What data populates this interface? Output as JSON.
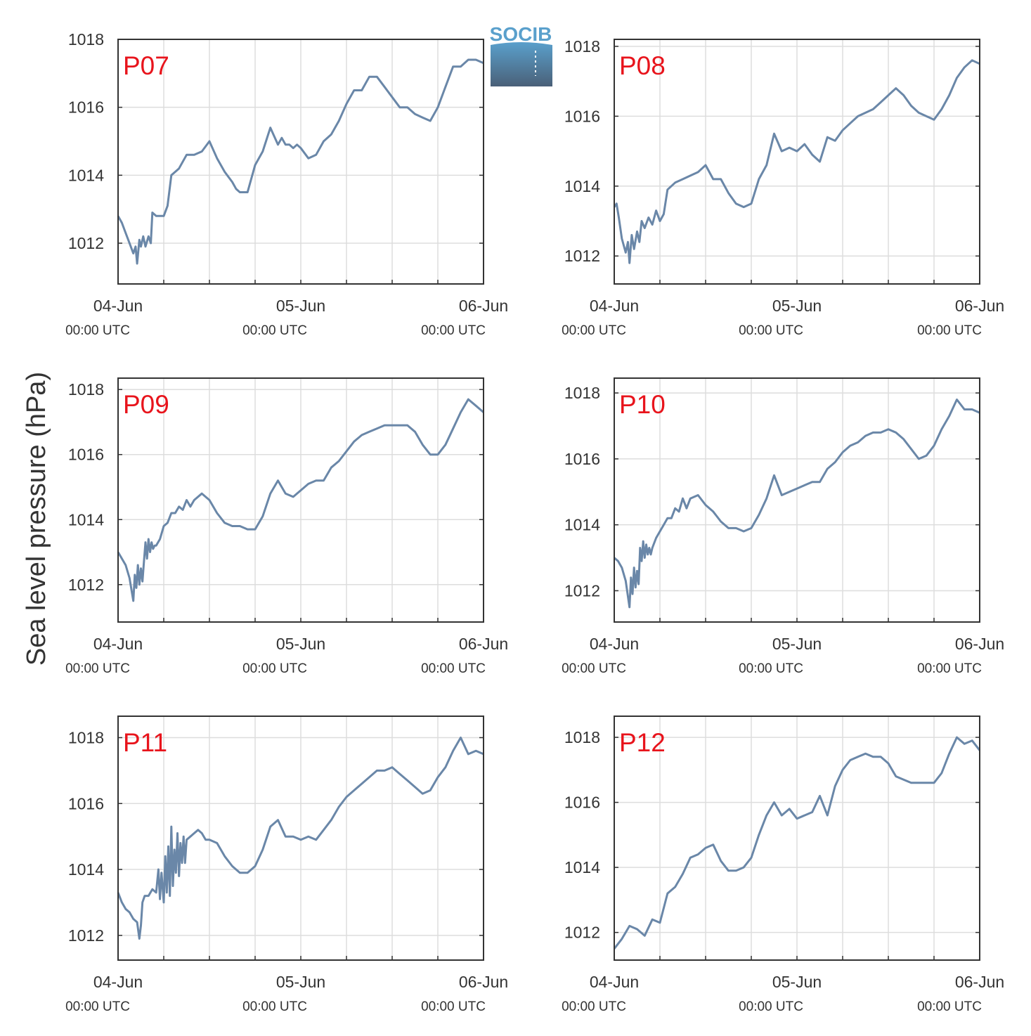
{
  "figure": {
    "ylabel": "Sea level pressure (hPa)",
    "logo_text": "SOCIB"
  },
  "colors": {
    "line": "#6a87a8",
    "label": "#e8141c",
    "grid": "#dddddd",
    "axis": "#333333",
    "logo_top": "#5aa0cc",
    "logo_bottom": "#4a6078"
  },
  "chart_data": [
    {
      "type": "line",
      "name": "P07",
      "panel_label": "P07",
      "ylim": [
        1010.8,
        1018.0
      ],
      "yticks": [
        1012,
        1014,
        1016,
        1018
      ],
      "xlim": [
        0,
        48
      ],
      "xticks": [
        0,
        24,
        48
      ],
      "xtick_labels": [
        "04-Jun",
        "05-Jun",
        "06-Jun"
      ],
      "xtick_sublabel": "00:00 UTC",
      "series": [
        {
          "x": [
            0,
            0.5,
            1,
            1.5,
            2,
            2.3,
            2.5,
            2.8,
            3,
            3.3,
            3.6,
            4,
            4.3,
            4.5,
            5,
            5.5,
            6,
            6.5,
            7,
            7.5,
            8,
            9,
            10,
            11,
            12,
            13,
            14,
            15,
            15.5,
            16,
            17,
            18,
            19,
            20,
            21,
            21.5,
            22,
            22.5,
            23,
            23.5,
            24,
            25,
            26,
            27,
            28,
            29,
            30,
            31,
            32,
            33,
            34,
            35,
            36,
            37,
            38,
            39,
            40,
            41,
            42,
            43,
            44,
            45,
            46,
            47,
            48
          ],
          "y": [
            1012.8,
            1012.6,
            1012.3,
            1012.0,
            1011.7,
            1011.9,
            1011.4,
            1012.1,
            1011.9,
            1012.2,
            1011.9,
            1012.2,
            1012.0,
            1012.9,
            1012.8,
            1012.8,
            1012.8,
            1013.1,
            1014.0,
            1014.1,
            1014.2,
            1014.6,
            1014.6,
            1014.7,
            1015.0,
            1014.5,
            1014.1,
            1013.8,
            1013.6,
            1013.5,
            1013.5,
            1014.3,
            1014.7,
            1015.4,
            1014.9,
            1015.1,
            1014.9,
            1014.9,
            1014.8,
            1014.9,
            1014.8,
            1014.5,
            1014.6,
            1015.0,
            1015.2,
            1015.6,
            1016.1,
            1016.5,
            1016.5,
            1016.9,
            1016.9,
            1016.6,
            1016.3,
            1016.0,
            1016.0,
            1015.8,
            1015.7,
            1015.6,
            1016.0,
            1016.6,
            1017.2,
            1017.2,
            1017.4,
            1017.4,
            1017.3
          ]
        }
      ]
    },
    {
      "type": "line",
      "name": "P08",
      "panel_label": "P08",
      "ylim": [
        1011.2,
        1018.2
      ],
      "yticks": [
        1012,
        1014,
        1016,
        1018
      ],
      "xlim": [
        0,
        48
      ],
      "xticks": [
        0,
        24,
        48
      ],
      "xtick_labels": [
        "04-Jun",
        "05-Jun",
        "06-Jun"
      ],
      "xtick_sublabel": "00:00 UTC",
      "series": [
        {
          "x": [
            0,
            0.3,
            0.6,
            1,
            1.5,
            1.8,
            2,
            2.3,
            2.6,
            3,
            3.3,
            3.6,
            4,
            4.5,
            5,
            5.5,
            6,
            6.5,
            7,
            8,
            9,
            10,
            11,
            12,
            13,
            14,
            15,
            16,
            17,
            18,
            19,
            20,
            21,
            22,
            23,
            24,
            25,
            26,
            27,
            28,
            29,
            30,
            31,
            32,
            33,
            34,
            35,
            36,
            37,
            38,
            39,
            40,
            41,
            42,
            43,
            44,
            45,
            46,
            47,
            48
          ],
          "y": [
            1013.4,
            1013.5,
            1013.1,
            1012.5,
            1012.1,
            1012.4,
            1011.8,
            1012.6,
            1012.2,
            1012.7,
            1012.4,
            1013.0,
            1012.8,
            1013.1,
            1012.9,
            1013.3,
            1013.0,
            1013.2,
            1013.9,
            1014.1,
            1014.2,
            1014.3,
            1014.4,
            1014.6,
            1014.2,
            1014.2,
            1013.8,
            1013.5,
            1013.4,
            1013.5,
            1014.2,
            1014.6,
            1015.5,
            1015.0,
            1015.1,
            1015.0,
            1015.2,
            1014.9,
            1014.7,
            1015.4,
            1015.3,
            1015.6,
            1015.8,
            1016.0,
            1016.1,
            1016.2,
            1016.4,
            1016.6,
            1016.8,
            1016.6,
            1016.3,
            1016.1,
            1016.0,
            1015.9,
            1016.2,
            1016.6,
            1017.1,
            1017.4,
            1017.6,
            1017.5
          ]
        }
      ]
    },
    {
      "type": "line",
      "name": "P09",
      "panel_label": "P09",
      "ylim": [
        1010.85,
        1018.35
      ],
      "yticks": [
        1012,
        1014,
        1016,
        1018
      ],
      "xlim": [
        0,
        48
      ],
      "xticks": [
        0,
        24,
        48
      ],
      "xtick_labels": [
        "04-Jun",
        "05-Jun",
        "06-Jun"
      ],
      "xtick_sublabel": "00:00 UTC",
      "series": [
        {
          "x": [
            0,
            0.5,
            1,
            1.5,
            2,
            2.2,
            2.4,
            2.6,
            2.8,
            3,
            3.2,
            3.4,
            3.6,
            3.8,
            4,
            4.2,
            4.4,
            4.6,
            4.8,
            5,
            5.5,
            6,
            6.5,
            7,
            7.5,
            8,
            8.5,
            9,
            9.5,
            10,
            11,
            12,
            13,
            14,
            15,
            16,
            17,
            18,
            19,
            20,
            21,
            22,
            23,
            24,
            25,
            26,
            27,
            28,
            29,
            30,
            31,
            32,
            33,
            34,
            35,
            36,
            37,
            38,
            39,
            40,
            41,
            42,
            43,
            44,
            45,
            46,
            47,
            48
          ],
          "y": [
            1013.0,
            1012.8,
            1012.6,
            1012.2,
            1011.5,
            1012.3,
            1011.9,
            1012.6,
            1012.0,
            1012.5,
            1012.1,
            1012.7,
            1013.3,
            1012.8,
            1013.4,
            1013.0,
            1013.3,
            1013.1,
            1013.2,
            1013.2,
            1013.4,
            1013.8,
            1013.9,
            1014.2,
            1014.2,
            1014.4,
            1014.3,
            1014.6,
            1014.4,
            1014.6,
            1014.8,
            1014.6,
            1014.2,
            1013.9,
            1013.8,
            1013.8,
            1013.7,
            1013.7,
            1014.1,
            1014.8,
            1015.2,
            1014.8,
            1014.7,
            1014.9,
            1015.1,
            1015.2,
            1015.2,
            1015.6,
            1015.8,
            1016.1,
            1016.4,
            1016.6,
            1016.7,
            1016.8,
            1016.9,
            1016.9,
            1016.9,
            1016.9,
            1016.7,
            1016.3,
            1016.0,
            1016.0,
            1016.3,
            1016.8,
            1017.3,
            1017.7,
            1017.5,
            1017.3
          ]
        }
      ]
    },
    {
      "type": "line",
      "name": "P10",
      "panel_label": "P10",
      "ylim": [
        1011.05,
        1018.45
      ],
      "yticks": [
        1012,
        1014,
        1016,
        1018
      ],
      "xlim": [
        0,
        48
      ],
      "xticks": [
        0,
        24,
        48
      ],
      "xtick_labels": [
        "04-Jun",
        "05-Jun",
        "06-Jun"
      ],
      "xtick_sublabel": "00:00 UTC",
      "series": [
        {
          "x": [
            0,
            0.5,
            1,
            1.5,
            2,
            2.2,
            2.4,
            2.6,
            2.8,
            3,
            3.2,
            3.4,
            3.6,
            3.8,
            4,
            4.2,
            4.4,
            4.6,
            4.8,
            5,
            5.5,
            6,
            6.5,
            7,
            7.5,
            8,
            8.5,
            9,
            9.5,
            10,
            11,
            12,
            13,
            14,
            15,
            16,
            17,
            18,
            19,
            20,
            21,
            22,
            23,
            24,
            25,
            26,
            27,
            28,
            29,
            30,
            31,
            32,
            33,
            34,
            35,
            36,
            37,
            38,
            39,
            40,
            41,
            42,
            43,
            44,
            45,
            46,
            47,
            48
          ],
          "y": [
            1013.0,
            1012.9,
            1012.7,
            1012.3,
            1011.5,
            1012.4,
            1011.9,
            1012.7,
            1012.1,
            1012.6,
            1012.2,
            1013.3,
            1012.9,
            1013.5,
            1013.0,
            1013.4,
            1013.1,
            1013.3,
            1013.1,
            1013.3,
            1013.6,
            1013.8,
            1014.0,
            1014.2,
            1014.2,
            1014.5,
            1014.4,
            1014.8,
            1014.5,
            1014.8,
            1014.9,
            1014.6,
            1014.4,
            1014.1,
            1013.9,
            1013.9,
            1013.8,
            1013.9,
            1014.3,
            1014.8,
            1015.5,
            1014.9,
            1015.0,
            1015.1,
            1015.2,
            1015.3,
            1015.3,
            1015.7,
            1015.9,
            1016.2,
            1016.4,
            1016.5,
            1016.7,
            1016.8,
            1016.8,
            1016.9,
            1016.8,
            1016.6,
            1016.3,
            1016.0,
            1016.1,
            1016.4,
            1016.9,
            1017.3,
            1017.8,
            1017.5,
            1017.5,
            1017.4
          ]
        }
      ]
    },
    {
      "type": "line",
      "name": "P11",
      "panel_label": "P11",
      "ylim": [
        1011.25,
        1018.65
      ],
      "yticks": [
        1012,
        1014,
        1016,
        1018
      ],
      "xlim": [
        0,
        48
      ],
      "xticks": [
        0,
        24,
        48
      ],
      "xtick_labels": [
        "04-Jun",
        "05-Jun",
        "06-Jun"
      ],
      "xtick_sublabel": "00:00 UTC",
      "series": [
        {
          "x": [
            0,
            0.5,
            1,
            1.5,
            2,
            2.5,
            2.8,
            3,
            3.2,
            3.5,
            4,
            4.5,
            5,
            5.3,
            5.5,
            5.7,
            6,
            6.2,
            6.4,
            6.6,
            6.8,
            7,
            7.2,
            7.4,
            7.6,
            7.8,
            8,
            8.2,
            8.4,
            8.6,
            8.8,
            9,
            9.5,
            10,
            10.5,
            11,
            11.5,
            12,
            13,
            14,
            15,
            16,
            17,
            18,
            19,
            20,
            21,
            22,
            23,
            24,
            25,
            26,
            27,
            28,
            29,
            30,
            31,
            32,
            33,
            34,
            35,
            36,
            37,
            38,
            39,
            40,
            41,
            42,
            43,
            44,
            45,
            46,
            47,
            48
          ],
          "y": [
            1013.3,
            1013.0,
            1012.8,
            1012.7,
            1012.5,
            1012.4,
            1011.9,
            1012.3,
            1013.0,
            1013.2,
            1013.2,
            1013.4,
            1013.3,
            1014.0,
            1013.1,
            1013.9,
            1013.0,
            1014.4,
            1013.3,
            1014.7,
            1013.2,
            1015.3,
            1013.5,
            1014.6,
            1013.9,
            1015.1,
            1013.8,
            1014.8,
            1014.2,
            1015.0,
            1014.2,
            1014.9,
            1015.0,
            1015.1,
            1015.2,
            1015.1,
            1014.9,
            1014.9,
            1014.8,
            1014.4,
            1014.1,
            1013.9,
            1013.9,
            1014.1,
            1014.6,
            1015.3,
            1015.5,
            1015.0,
            1015.0,
            1014.9,
            1015.0,
            1014.9,
            1015.2,
            1015.5,
            1015.9,
            1016.2,
            1016.4,
            1016.6,
            1016.8,
            1017.0,
            1017.0,
            1017.1,
            1016.9,
            1016.7,
            1016.5,
            1016.3,
            1016.4,
            1016.8,
            1017.1,
            1017.6,
            1018.0,
            1017.5,
            1017.6,
            1017.5
          ]
        }
      ]
    },
    {
      "type": "line",
      "name": "P12",
      "panel_label": "P12",
      "ylim": [
        1011.15,
        1018.65
      ],
      "yticks": [
        1012,
        1014,
        1016,
        1018
      ],
      "xlim": [
        0,
        48
      ],
      "xticks": [
        0,
        24,
        48
      ],
      "xtick_labels": [
        "04-Jun",
        "05-Jun",
        "06-Jun"
      ],
      "xtick_sublabel": "00:00 UTC",
      "series": [
        {
          "x": [
            0,
            1,
            2,
            3,
            4,
            5,
            6,
            7,
            8,
            9,
            10,
            11,
            12,
            13,
            14,
            15,
            16,
            17,
            18,
            19,
            20,
            21,
            22,
            23,
            24,
            25,
            26,
            27,
            28,
            29,
            30,
            31,
            32,
            33,
            34,
            35,
            36,
            37,
            38,
            39,
            40,
            41,
            42,
            43,
            44,
            45,
            46,
            47,
            48
          ],
          "y": [
            1011.5,
            1011.8,
            1012.2,
            1012.1,
            1011.9,
            1012.4,
            1012.3,
            1013.2,
            1013.4,
            1013.8,
            1014.3,
            1014.4,
            1014.6,
            1014.7,
            1014.2,
            1013.9,
            1013.9,
            1014.0,
            1014.3,
            1015.0,
            1015.6,
            1016.0,
            1015.6,
            1015.8,
            1015.5,
            1015.6,
            1015.7,
            1016.2,
            1015.6,
            1016.5,
            1017.0,
            1017.3,
            1017.4,
            1017.5,
            1017.4,
            1017.4,
            1017.2,
            1016.8,
            1016.7,
            1016.6,
            1016.6,
            1016.6,
            1016.6,
            1016.9,
            1017.5,
            1018.0,
            1017.8,
            1017.9,
            1017.6
          ]
        }
      ]
    }
  ]
}
